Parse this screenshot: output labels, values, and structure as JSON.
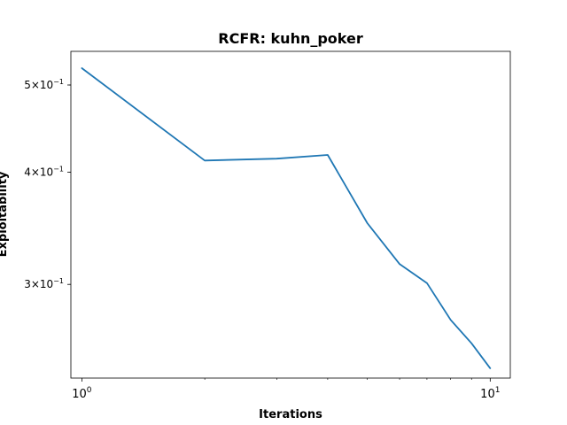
{
  "chart_data": {
    "type": "line",
    "title": "RCFR: kuhn_poker",
    "xlabel": "Iterations",
    "ylabel": "Exploitability",
    "xscale": "log",
    "yscale": "log",
    "xlim": [
      0.94,
      11.2
    ],
    "ylim": [
      0.236,
      0.545
    ],
    "grid": false,
    "x_ticks": [
      {
        "value": 1,
        "label": "10",
        "exp": "0"
      },
      {
        "value": 10,
        "label": "10",
        "exp": "1"
      }
    ],
    "y_ticks": [
      {
        "value": 0.3,
        "label": "3×10",
        "exp": "−1"
      },
      {
        "value": 0.4,
        "label": "4×10",
        "exp": "−1"
      },
      {
        "value": 0.5,
        "label": "5×10",
        "exp": "−1"
      }
    ],
    "series": [
      {
        "color": "#1f77b4",
        "x": [
          1,
          2,
          3,
          4,
          5,
          6,
          7,
          8,
          9,
          10
        ],
        "y": [
          0.522,
          0.412,
          0.414,
          0.418,
          0.351,
          0.316,
          0.301,
          0.274,
          0.258,
          0.242
        ]
      }
    ]
  }
}
